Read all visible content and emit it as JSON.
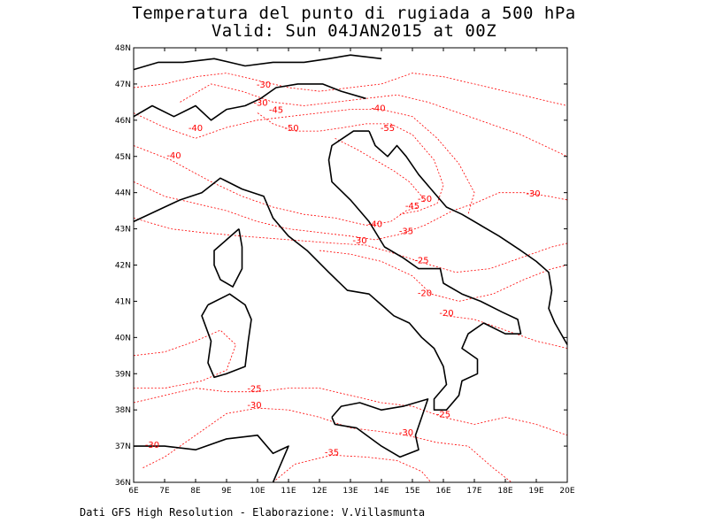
{
  "title_line1": "Temperatura del punto di rugiada a 500 hPa",
  "title_line2": "Valid: Sun 04JAN2015 at 00Z",
  "credit": "Dati GFS High Resolution - Elaborazione: V.Villasmunta",
  "map": {
    "lon_range": [
      6,
      20
    ],
    "lat_range": [
      36,
      48
    ],
    "lon_ticks": [
      "6E",
      "7E",
      "8E",
      "9E",
      "10E",
      "11E",
      "12E",
      "13E",
      "14E",
      "15E",
      "16E",
      "17E",
      "18E",
      "19E",
      "20E"
    ],
    "lat_ticks": [
      "36N",
      "37N",
      "38N",
      "39N",
      "40N",
      "41N",
      "42N",
      "43N",
      "44N",
      "45N",
      "46N",
      "47N",
      "48N"
    ],
    "contour_color": "#ff0000",
    "coast_color": "#000000",
    "contour_labels": [
      {
        "text": "-30",
        "lon": 10.2,
        "lat": 46.9
      },
      {
        "text": "-30",
        "lon": 10.1,
        "lat": 46.4
      },
      {
        "text": "-45",
        "lon": 10.6,
        "lat": 46.2
      },
      {
        "text": "-40",
        "lon": 13.9,
        "lat": 46.25
      },
      {
        "text": "-40",
        "lon": 8.0,
        "lat": 45.7
      },
      {
        "text": "-50",
        "lon": 11.1,
        "lat": 45.7
      },
      {
        "text": "-55",
        "lon": 14.2,
        "lat": 45.7
      },
      {
        "text": "-40",
        "lon": 7.3,
        "lat": 44.95
      },
      {
        "text": "-30",
        "lon": 18.9,
        "lat": 43.9
      },
      {
        "text": "-50",
        "lon": 15.4,
        "lat": 43.75
      },
      {
        "text": "-45",
        "lon": 15.0,
        "lat": 43.55
      },
      {
        "text": "-40",
        "lon": 13.8,
        "lat": 43.05
      },
      {
        "text": "-35",
        "lon": 14.8,
        "lat": 42.85
      },
      {
        "text": "-30",
        "lon": 13.3,
        "lat": 42.6
      },
      {
        "text": "-25",
        "lon": 15.3,
        "lat": 42.05
      },
      {
        "text": "-20",
        "lon": 15.4,
        "lat": 41.15
      },
      {
        "text": "-20",
        "lon": 16.1,
        "lat": 40.6
      },
      {
        "text": "-25",
        "lon": 9.9,
        "lat": 38.5
      },
      {
        "text": "-30",
        "lon": 9.9,
        "lat": 38.05
      },
      {
        "text": "-25",
        "lon": 16.0,
        "lat": 37.8
      },
      {
        "text": "-30",
        "lon": 14.8,
        "lat": 37.3
      },
      {
        "text": "-30",
        "lon": 6.6,
        "lat": 36.95
      },
      {
        "text": "-35",
        "lon": 12.4,
        "lat": 36.75
      }
    ]
  }
}
